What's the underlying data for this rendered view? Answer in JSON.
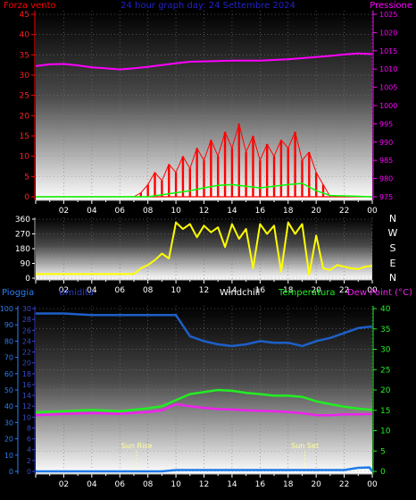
{
  "header": {
    "title": "24 hour graph day: 24 Settembre 2024",
    "left_label": "Forza vento",
    "right_label": "Pressione"
  },
  "mid_panel": {
    "compass": [
      "N",
      "W",
      "S",
      "E",
      "N"
    ]
  },
  "bottom_header": {
    "pioggia": "Pioggia",
    "umidita": "Umidita",
    "windchill": "Windchill",
    "temperatura": "Temperatura",
    "dewpoint": "Dew Point (°C)"
  },
  "colors": {
    "wind": "#ff0000",
    "gust_green": "#00ff00",
    "pressure": "#ff00ff",
    "direction": "#ffff00",
    "humidity": "#1e5fc8",
    "temperature": "#22ee22",
    "dewpoint": "#ee22ee",
    "rain": "#1e7ae8",
    "axis_rain": "#2f7ef0",
    "axis_temp": "#22ee22",
    "sun": "#ffff99"
  },
  "chart_data": [
    {
      "type": "line",
      "panel": "top",
      "title": "24 hour graph day: 24 Settembre 2024",
      "x_ticks": [
        "02",
        "04",
        "06",
        "08",
        "10",
        "12",
        "14",
        "16",
        "18",
        "20",
        "22",
        "00"
      ],
      "ylim_left": [
        0,
        45
      ],
      "yticks_left": [
        0,
        5,
        10,
        15,
        20,
        25,
        30,
        35,
        40,
        45
      ],
      "ylim_right": [
        975,
        1025
      ],
      "yticks_right": [
        975,
        980,
        985,
        990,
        995,
        1000,
        1005,
        1010,
        1015,
        1020,
        1025
      ],
      "series": [
        {
          "name": "Pressione",
          "axis": "right",
          "x": [
            0,
            1,
            2,
            3,
            4,
            5,
            6,
            7,
            8,
            9,
            10,
            11,
            12,
            13,
            14,
            15,
            16,
            17,
            18,
            19,
            20,
            21,
            22,
            23,
            24
          ],
          "values": [
            1010.8,
            1011.3,
            1011.4,
            1011.0,
            1010.5,
            1010.2,
            1009.9,
            1010.2,
            1010.6,
            1011.1,
            1011.6,
            1012.0,
            1012.1,
            1012.2,
            1012.3,
            1012.3,
            1012.3,
            1012.5,
            1012.7,
            1013.0,
            1013.3,
            1013.6,
            1014.0,
            1014.3,
            1014.1
          ]
        },
        {
          "name": "Forza vento",
          "axis": "left",
          "x": [
            0,
            1,
            2,
            3,
            4,
            5,
            6,
            7,
            7.5,
            8,
            8.5,
            9,
            9.5,
            10,
            10.5,
            11,
            11.5,
            12,
            12.5,
            13,
            13.5,
            14,
            14.5,
            15,
            15.5,
            16,
            16.5,
            17,
            17.5,
            18,
            18.5,
            19,
            19.5,
            20,
            20.5,
            21,
            22,
            23,
            24
          ],
          "values": [
            0,
            0,
            0,
            0,
            0,
            0,
            0,
            0,
            1,
            3,
            6,
            4,
            8,
            6,
            10,
            7,
            12,
            9,
            14,
            10,
            16,
            12,
            18,
            11,
            15,
            9,
            13,
            10,
            14,
            12,
            16,
            9,
            11,
            6,
            3,
            0,
            0,
            0,
            0
          ]
        },
        {
          "name": "gust_green",
          "axis": "left",
          "x": [
            0,
            8,
            9,
            10,
            11,
            12,
            13,
            14,
            15,
            16,
            17,
            18,
            19,
            20,
            21,
            24
          ],
          "values": [
            0,
            0,
            0.5,
            1.0,
            1.5,
            2.2,
            2.8,
            3.0,
            2.6,
            2.2,
            2.6,
            3.0,
            3.3,
            1.5,
            0.3,
            0
          ]
        }
      ]
    },
    {
      "type": "line",
      "panel": "middle",
      "ylim": [
        0,
        360
      ],
      "yticks": [
        0,
        90,
        180,
        270,
        360
      ],
      "x_ticks": [
        "02",
        "04",
        "06",
        "08",
        "10",
        "12",
        "14",
        "16",
        "18",
        "20",
        "22",
        "00"
      ],
      "series": [
        {
          "name": "wind_direction",
          "x": [
            0,
            2,
            4,
            5,
            6,
            7,
            7.5,
            8,
            8.5,
            9,
            9.5,
            10,
            10.5,
            11,
            11.5,
            12,
            12.5,
            13,
            13.5,
            14,
            14.5,
            15,
            15.5,
            16,
            16.5,
            17,
            17.5,
            18,
            18.5,
            19,
            19.5,
            20,
            20.5,
            21,
            21.5,
            22,
            22.5,
            23,
            23.5,
            24
          ],
          "values": [
            25,
            25,
            25,
            25,
            25,
            25,
            60,
            80,
            110,
            150,
            120,
            340,
            300,
            330,
            250,
            320,
            280,
            310,
            190,
            330,
            240,
            300,
            60,
            330,
            270,
            320,
            40,
            340,
            270,
            330,
            20,
            260,
            60,
            50,
            80,
            70,
            60,
            55,
            70,
            75
          ]
        }
      ]
    },
    {
      "type": "line",
      "panel": "bottom",
      "x_ticks": [
        "02",
        "04",
        "06",
        "08",
        "10",
        "12",
        "14",
        "16",
        "18",
        "20",
        "22",
        "00"
      ],
      "ylim_left_outer": [
        0,
        100
      ],
      "yticks_left_outer": [
        0,
        10,
        20,
        30,
        40,
        50,
        60,
        70,
        80,
        90,
        100
      ],
      "ylim_left_inner": [
        0,
        30
      ],
      "yticks_left_inner": [
        0,
        2,
        4,
        6,
        8,
        10,
        12,
        14,
        16,
        18,
        20,
        22,
        24,
        26,
        28,
        30
      ],
      "ylim_right": [
        0,
        40
      ],
      "yticks_right": [
        0,
        5,
        10,
        15,
        20,
        25,
        30,
        35,
        40
      ],
      "annotations": [
        {
          "label": "Sun Rise",
          "x": 7.2
        },
        {
          "label": "Sun Set",
          "x": 19.2
        }
      ],
      "series": [
        {
          "name": "Umidita",
          "axis": "left_outer",
          "x": [
            0,
            2,
            4,
            6,
            8,
            9,
            10,
            11,
            12,
            13,
            14,
            15,
            16,
            17,
            18,
            19,
            20,
            21,
            22,
            23,
            24
          ],
          "values": [
            97,
            97,
            96,
            96,
            96,
            96,
            96,
            83,
            80,
            78,
            77,
            78,
            80,
            79,
            79,
            77,
            80,
            82,
            85,
            88,
            89
          ]
        },
        {
          "name": "Temperatura",
          "axis": "right",
          "x": [
            0,
            2,
            4,
            6,
            8,
            9,
            10,
            11,
            12,
            13,
            14,
            15,
            16,
            17,
            18,
            19,
            20,
            21,
            22,
            23,
            24
          ],
          "values": [
            14.5,
            14.8,
            15.1,
            14.8,
            15.5,
            16,
            17.5,
            19,
            19.5,
            20,
            19.8,
            19.3,
            19.0,
            18.6,
            18.6,
            18.3,
            17.2,
            16.5,
            15.9,
            15.4,
            15.1
          ]
        },
        {
          "name": "Dew Point (°C)",
          "axis": "right",
          "x": [
            0,
            2,
            4,
            6,
            8,
            9,
            10,
            11,
            12,
            13,
            14,
            15,
            16,
            17,
            18,
            19,
            20,
            21,
            22,
            23,
            24
          ],
          "values": [
            13.8,
            14.1,
            14.3,
            14.1,
            14.6,
            15,
            16.5,
            16.0,
            15.6,
            15.3,
            15.2,
            15.0,
            14.9,
            14.8,
            14.6,
            14.3,
            13.8,
            13.8,
            14.0,
            14.0,
            14.1
          ]
        },
        {
          "name": "Pioggia",
          "axis": "left_outer",
          "x": [
            0,
            2,
            4,
            6,
            8,
            9,
            10,
            12,
            14,
            16,
            18,
            20,
            22,
            23,
            23.8,
            24
          ],
          "values": [
            0,
            0,
            0,
            0,
            0,
            0,
            0.8,
            0.8,
            0.8,
            0.8,
            0.8,
            0.8,
            0.8,
            2.2,
            2.4,
            0
          ]
        }
      ]
    }
  ]
}
